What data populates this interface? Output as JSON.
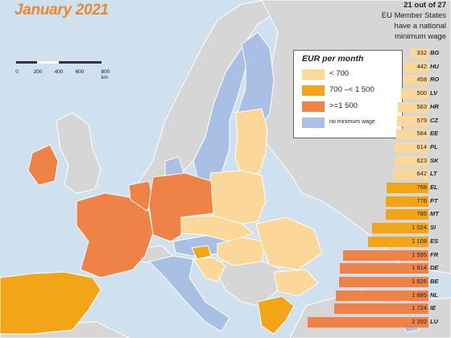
{
  "header": {
    "title": "January 2021",
    "note_line1": "21 out of 27",
    "note_line2": "EU Member States",
    "note_line3": "have a national",
    "note_line4": "minimum wage"
  },
  "scale_bar": {
    "labels": [
      "0",
      "200",
      "400",
      "600",
      "800 km"
    ]
  },
  "legend": {
    "title": "EUR per month",
    "items": [
      {
        "label": "< 700",
        "color": "#fcd79a"
      },
      {
        "label": "700 –< 1 500",
        "color": "#f2a516"
      },
      {
        "label": ">=1 500",
        "color": "#ee8247"
      },
      {
        "label": "no minimum wage",
        "color": "#a9bfe4"
      }
    ]
  },
  "colors": {
    "sea": "#cfe0ee",
    "non_eu_land": "#d6d6d6",
    "border": "#ffffff"
  },
  "chart_data": {
    "type": "bar",
    "title": "",
    "unit": "EUR per month",
    "categories": [
      "BG",
      "HU",
      "RO",
      "LV",
      "HR",
      "CZ",
      "EE",
      "PL",
      "SK",
      "LT",
      "EL",
      "PT",
      "MT",
      "SI",
      "ES",
      "FR",
      "DE",
      "BE",
      "NL",
      "IE",
      "LU"
    ],
    "value_labels": [
      "332",
      "442",
      "458",
      "500",
      "563",
      "579",
      "584",
      "614",
      "623",
      "642",
      "758",
      "776",
      "785",
      "1 024",
      "1 108",
      "1 555",
      "1 614",
      "1 626",
      "1 685",
      "1 724",
      "2 202"
    ],
    "values": [
      332,
      442,
      458,
      500,
      563,
      579,
      584,
      614,
      623,
      642,
      758,
      776,
      785,
      1024,
      1108,
      1555,
      1614,
      1626,
      1685,
      1724,
      2202
    ],
    "band_colors": {
      "low": "#fcd79a",
      "mid": "#f2a516",
      "high": "#ee8247"
    }
  }
}
